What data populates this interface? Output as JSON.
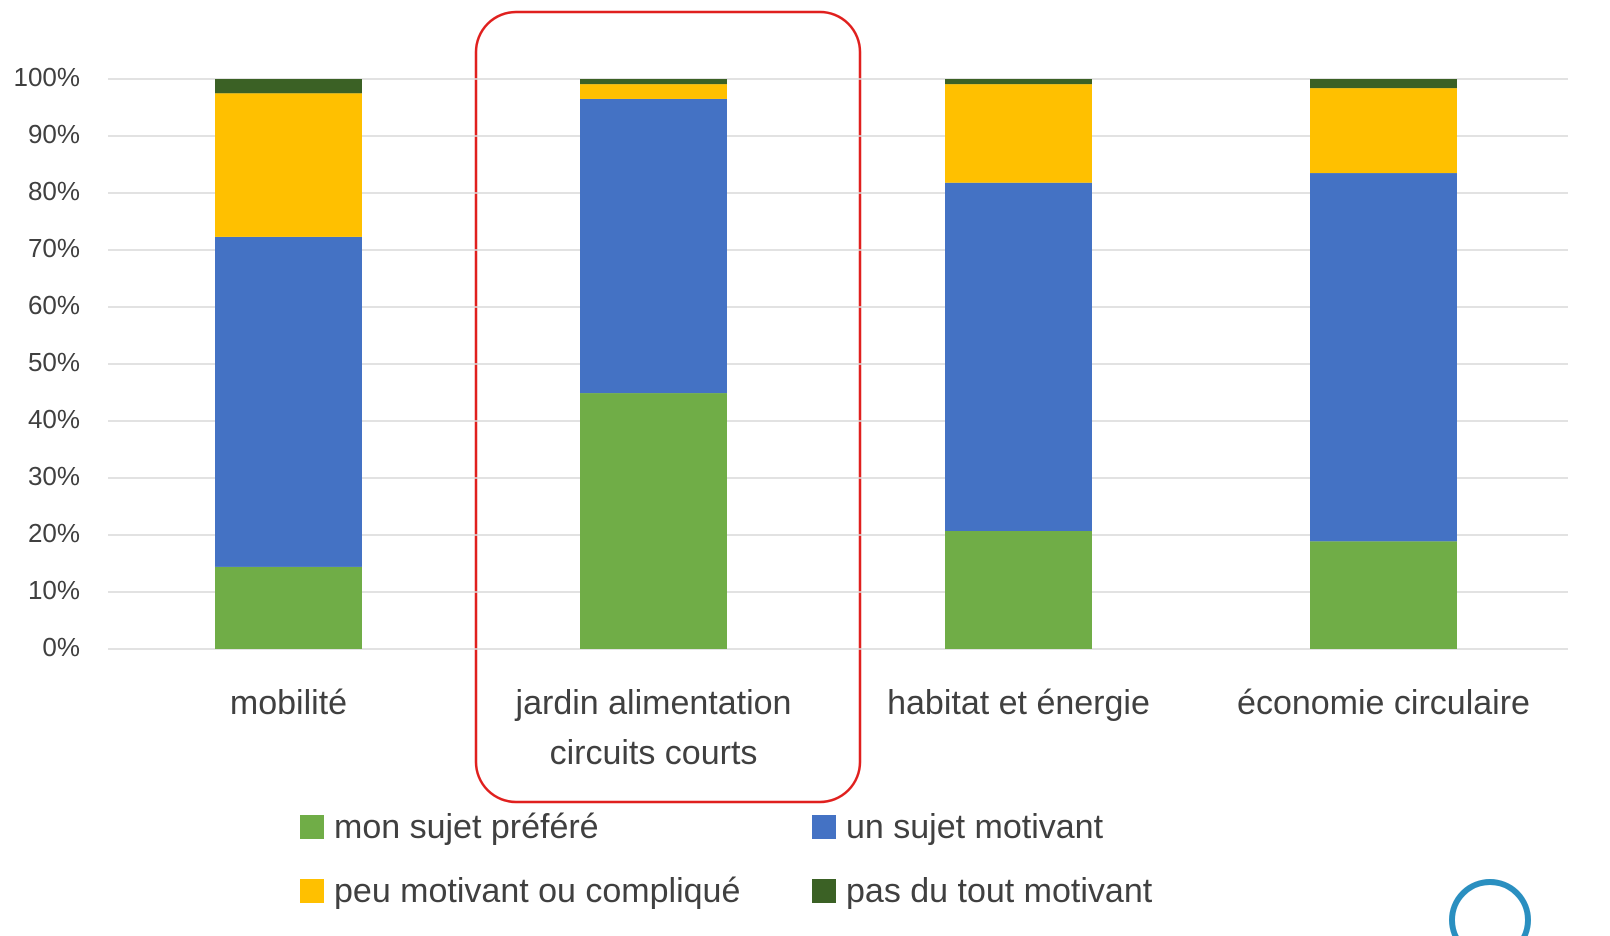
{
  "chart_data": {
    "type": "stacked_bar",
    "categories": [
      "mobilité",
      "jardin alimentation circuits courts",
      "habitat et énergie",
      "économie circulaire"
    ],
    "series": [
      {
        "name": "mon sujet préféré",
        "color": "#70ad47",
        "values": [
          14.4,
          44.9,
          20.7,
          18.9
        ]
      },
      {
        "name": "un sujet motivant",
        "color": "#4472c4",
        "values": [
          57.9,
          51.6,
          61.1,
          64.6
        ]
      },
      {
        "name": "peu motivant ou compliqué",
        "color": "#ffc000",
        "values": [
          25.2,
          2.6,
          17.3,
          14.9
        ]
      },
      {
        "name": "pas du tout motivant",
        "color": "#3b6125",
        "values": [
          2.5,
          0.9,
          0.9,
          1.6
        ]
      }
    ],
    "ylim": [
      0,
      100
    ],
    "yticks": [
      {
        "value": 0,
        "label": "0%"
      },
      {
        "value": 10,
        "label": "10%"
      },
      {
        "value": 20,
        "label": "20%"
      },
      {
        "value": 30,
        "label": "30%"
      },
      {
        "value": 40,
        "label": "40%"
      },
      {
        "value": 50,
        "label": "50%"
      },
      {
        "value": 60,
        "label": "60%"
      },
      {
        "value": 70,
        "label": "70%"
      },
      {
        "value": 80,
        "label": "80%"
      },
      {
        "value": 90,
        "label": "90%"
      },
      {
        "value": 100,
        "label": "100%"
      }
    ],
    "grid": true
  }
}
